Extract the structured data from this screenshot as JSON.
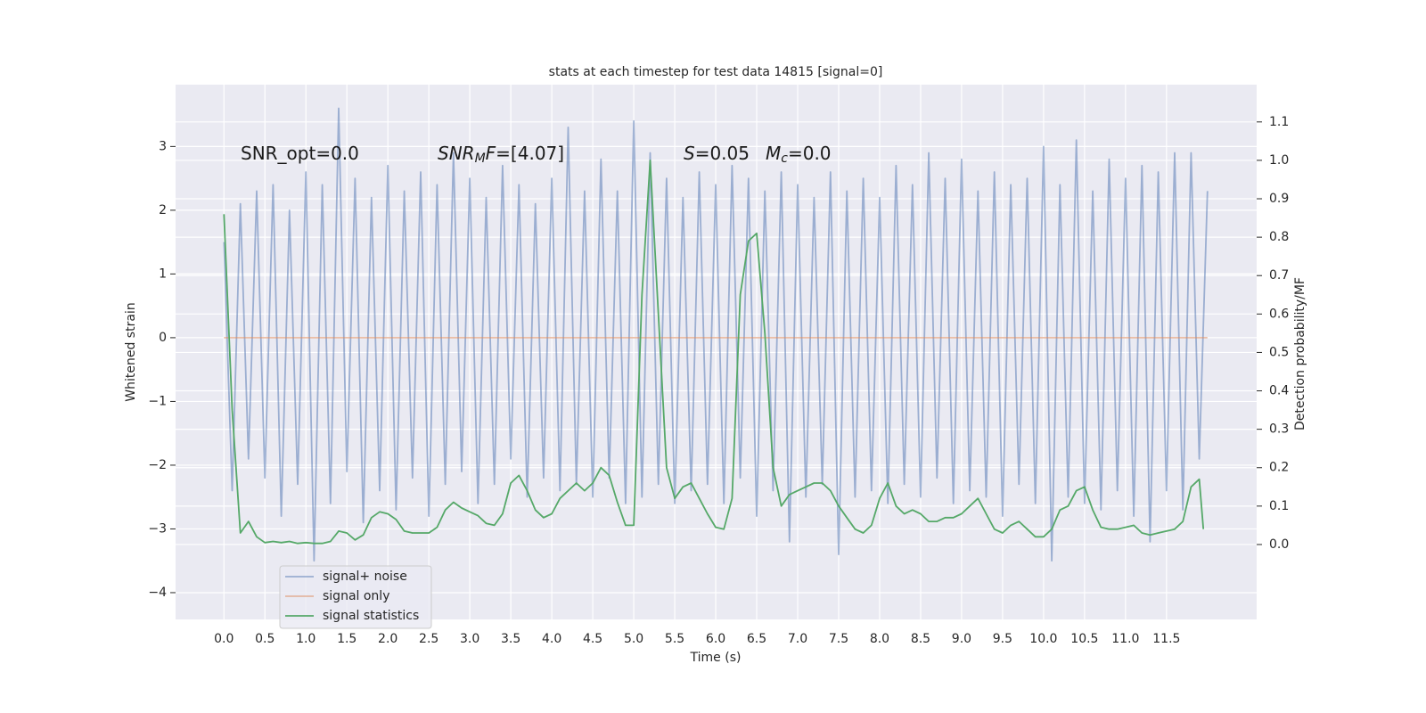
{
  "chart_data": {
    "type": "line",
    "title": "stats at each timestep for test data 14815 [signal=0]",
    "xlabel": "Time (s)",
    "ylabel": "Whitened strain",
    "y2label": "Detection probability/MF",
    "annotations": [
      [
        {
          "text": "SNR_opt=0.0"
        }
      ],
      [
        {
          "text": "SNR",
          "italic": true
        },
        {
          "text": "M",
          "italic": true,
          "sub": true
        },
        {
          "text": "F",
          "italic": true
        },
        {
          "text": "=[4.07]"
        }
      ],
      [
        {
          "text": "S",
          "italic": true
        },
        {
          "text": "=0.05"
        }
      ],
      [
        {
          "text": "M",
          "italic": true
        },
        {
          "text": "c",
          "italic": true,
          "sub": true
        },
        {
          "text": "=0.0"
        }
      ]
    ],
    "xlim": [
      -0.59,
      12.6
    ],
    "ylim": [
      -4.42,
      3.97
    ],
    "y2lim": [
      -0.195,
      1.197
    ],
    "xticks": [
      {
        "value": 0,
        "label": "0.0"
      },
      {
        "value": 0.5,
        "label": "0.5"
      },
      {
        "value": 1,
        "label": "1.0"
      },
      {
        "value": 1.5,
        "label": "1.5"
      },
      {
        "value": 2,
        "label": "2.0"
      },
      {
        "value": 2.5,
        "label": "2.5"
      },
      {
        "value": 3,
        "label": "3.0"
      },
      {
        "value": 3.5,
        "label": "3.5"
      },
      {
        "value": 4,
        "label": "4.0"
      },
      {
        "value": 4.5,
        "label": "4.5"
      },
      {
        "value": 5,
        "label": "5.0"
      },
      {
        "value": 5.5,
        "label": "5.5"
      },
      {
        "value": 6,
        "label": "6.0"
      },
      {
        "value": 6.5,
        "label": "6.5"
      },
      {
        "value": 7,
        "label": "7.0"
      },
      {
        "value": 7.5,
        "label": "7.5"
      },
      {
        "value": 8,
        "label": "8.0"
      },
      {
        "value": 8.5,
        "label": "8.5"
      },
      {
        "value": 9,
        "label": "9.0"
      },
      {
        "value": 9.5,
        "label": "9.5"
      },
      {
        "value": 10,
        "label": "10.0"
      },
      {
        "value": 10.5,
        "label": "10.5"
      },
      {
        "value": 11,
        "label": "11.0"
      },
      {
        "value": 11.5,
        "label": "11.5"
      }
    ],
    "yticks": [
      {
        "value": -4,
        "label": "−4"
      },
      {
        "value": -3,
        "label": "−3"
      },
      {
        "value": -2,
        "label": "−2"
      },
      {
        "value": -1,
        "label": "−1"
      },
      0,
      1,
      2,
      3
    ],
    "y2ticks": [
      {
        "value": 0,
        "label": "0.0"
      },
      {
        "value": 0.1,
        "label": "0.1"
      },
      {
        "value": 0.2,
        "label": "0.2"
      },
      {
        "value": 0.3,
        "label": "0.3"
      },
      {
        "value": 0.4,
        "label": "0.4"
      },
      {
        "value": 0.5,
        "label": "0.5"
      },
      {
        "value": 0.6,
        "label": "0.6"
      },
      {
        "value": 0.7,
        "label": "0.7"
      },
      {
        "value": 0.8,
        "label": "0.8"
      },
      {
        "value": 0.9,
        "label": "0.9"
      },
      {
        "value": 1,
        "label": "1.0"
      },
      {
        "value": 1.1,
        "label": "1.1"
      }
    ],
    "grid": true,
    "legend": "lower left",
    "series": [
      {
        "name": "signal+ noise",
        "color": "#4c72b0",
        "alpha": 0.5,
        "x": [
          0,
          0.1,
          0.2,
          0.3,
          0.4,
          0.5,
          0.6,
          0.7,
          0.8,
          0.9,
          1,
          1.1,
          1.2,
          1.3,
          1.4,
          1.5,
          1.6,
          1.7,
          1.8,
          1.9,
          2,
          2.1,
          2.2,
          2.3,
          2.4,
          2.5,
          2.6,
          2.7,
          2.8,
          2.9,
          3,
          3.1,
          3.2,
          3.3,
          3.4,
          3.5,
          3.6,
          3.7,
          3.8,
          3.9,
          4,
          4.1,
          4.2,
          4.3,
          4.4,
          4.5,
          4.6,
          4.7,
          4.8,
          4.9,
          5,
          5.1,
          5.2,
          5.3,
          5.4,
          5.5,
          5.6,
          5.7,
          5.8,
          5.9,
          6,
          6.1,
          6.2,
          6.3,
          6.4,
          6.5,
          6.6,
          6.7,
          6.8,
          6.9,
          7,
          7.1,
          7.2,
          7.3,
          7.4,
          7.5,
          7.6,
          7.7,
          7.8,
          7.9,
          8,
          8.1,
          8.2,
          8.3,
          8.4,
          8.5,
          8.6,
          8.7,
          8.8,
          8.9,
          9,
          9.1,
          9.2,
          9.3,
          9.4,
          9.5,
          9.6,
          9.7,
          9.8,
          9.9,
          10,
          10.1,
          10.2,
          10.3,
          10.4,
          10.5,
          10.6,
          10.7,
          10.8,
          10.9,
          11,
          11.1,
          11.2,
          11.3,
          11.4,
          11.5,
          11.6,
          11.7,
          11.8,
          11.9,
          12
        ],
        "values": [
          1.5,
          -2.4,
          2.1,
          -1.9,
          2.3,
          -2.2,
          2.4,
          -2.8,
          2.0,
          -2.3,
          2.6,
          -3.5,
          2.4,
          -2.6,
          3.6,
          -2.1,
          2.5,
          -2.9,
          2.2,
          -2.4,
          2.7,
          -2.7,
          2.3,
          -2.2,
          2.6,
          -2.8,
          2.4,
          -2.3,
          2.9,
          -2.1,
          2.5,
          -2.6,
          2.2,
          -2.3,
          2.7,
          -1.9,
          2.4,
          -2.5,
          2.1,
          -2.2,
          2.5,
          -2.4,
          3.3,
          -2.3,
          2.3,
          -2.5,
          2.8,
          -2.2,
          2.3,
          -2.6,
          3.4,
          -2.5,
          2.9,
          -2.3,
          2.5,
          -2.6,
          2.2,
          -2.4,
          2.6,
          -2.3,
          2.4,
          -2.6,
          2.7,
          -2.2,
          2.5,
          -2.8,
          2.3,
          -2.4,
          2.6,
          -3.2,
          2.4,
          -2.5,
          2.2,
          -2.3,
          2.6,
          -3.4,
          2.3,
          -2.5,
          2.5,
          -2.4,
          2.2,
          -2.6,
          2.7,
          -2.3,
          2.4,
          -2.5,
          2.9,
          -2.2,
          2.5,
          -2.6,
          2.8,
          -2.4,
          2.3,
          -2.5,
          2.6,
          -2.8,
          2.4,
          -2.3,
          2.5,
          -2.6,
          3.0,
          -3.5,
          2.4,
          -2.5,
          3.1,
          -2.6,
          2.3,
          -2.7,
          2.8,
          -2.4,
          2.5,
          -2.8,
          2.7,
          -3.2,
          2.6,
          -2.4,
          2.9,
          -2.7,
          2.9,
          -1.9,
          2.3
        ]
      },
      {
        "name": "signal only",
        "color": "#dd8452",
        "alpha": 0.5,
        "x": [
          0,
          12
        ],
        "values": [
          0,
          0
        ]
      },
      {
        "name": "signal statistics",
        "color": "#55a868",
        "alpha": 1,
        "axis": "y2",
        "x": [
          0,
          0.1,
          0.2,
          0.3,
          0.4,
          0.5,
          0.6,
          0.7,
          0.8,
          0.9,
          1,
          1.1,
          1.2,
          1.3,
          1.4,
          1.5,
          1.6,
          1.7,
          1.8,
          1.9,
          2,
          2.1,
          2.2,
          2.3,
          2.4,
          2.5,
          2.6,
          2.7,
          2.8,
          2.9,
          3,
          3.1,
          3.2,
          3.3,
          3.4,
          3.5,
          3.6,
          3.7,
          3.8,
          3.9,
          4,
          4.1,
          4.2,
          4.3,
          4.4,
          4.5,
          4.6,
          4.7,
          4.8,
          4.9,
          5,
          5.1,
          5.2,
          5.3,
          5.4,
          5.5,
          5.6,
          5.7,
          5.8,
          5.9,
          6,
          6.1,
          6.2,
          6.3,
          6.4,
          6.5,
          6.6,
          6.7,
          6.8,
          6.9,
          7,
          7.1,
          7.2,
          7.3,
          7.4,
          7.5,
          7.6,
          7.7,
          7.8,
          7.9,
          8,
          8.1,
          8.2,
          8.3,
          8.4,
          8.5,
          8.6,
          8.7,
          8.8,
          8.9,
          9,
          9.1,
          9.2,
          9.3,
          9.4,
          9.5,
          9.6,
          9.7,
          9.8,
          9.9,
          10,
          10.1,
          10.2,
          10.3,
          10.4,
          10.5,
          10.6,
          10.7,
          10.8,
          10.9,
          11,
          11.1,
          11.2,
          11.3,
          11.4,
          11.5,
          11.6,
          11.7,
          11.8,
          11.9,
          11.95
        ],
        "values": [
          0.86,
          0.35,
          0.03,
          0.06,
          0.02,
          0.005,
          0.008,
          0.005,
          0.008,
          0.003,
          0.005,
          0.003,
          0.003,
          0.008,
          0.035,
          0.03,
          0.012,
          0.025,
          0.07,
          0.085,
          0.08,
          0.065,
          0.035,
          0.03,
          0.03,
          0.03,
          0.045,
          0.09,
          0.11,
          0.095,
          0.085,
          0.075,
          0.055,
          0.05,
          0.08,
          0.16,
          0.18,
          0.14,
          0.09,
          0.07,
          0.08,
          0.12,
          0.14,
          0.16,
          0.14,
          0.16,
          0.2,
          0.18,
          0.11,
          0.05,
          0.05,
          0.65,
          1.0,
          0.6,
          0.2,
          0.12,
          0.15,
          0.16,
          0.12,
          0.08,
          0.045,
          0.04,
          0.12,
          0.65,
          0.79,
          0.81,
          0.55,
          0.2,
          0.1,
          0.13,
          0.14,
          0.15,
          0.16,
          0.16,
          0.14,
          0.1,
          0.07,
          0.04,
          0.03,
          0.05,
          0.12,
          0.16,
          0.1,
          0.08,
          0.09,
          0.08,
          0.06,
          0.06,
          0.07,
          0.07,
          0.08,
          0.1,
          0.12,
          0.08,
          0.04,
          0.03,
          0.05,
          0.06,
          0.04,
          0.02,
          0.02,
          0.04,
          0.09,
          0.1,
          0.14,
          0.15,
          0.09,
          0.045,
          0.04,
          0.04,
          0.045,
          0.05,
          0.03,
          0.025,
          0.03,
          0.035,
          0.04,
          0.06,
          0.15,
          0.17,
          0.04
        ]
      }
    ]
  }
}
